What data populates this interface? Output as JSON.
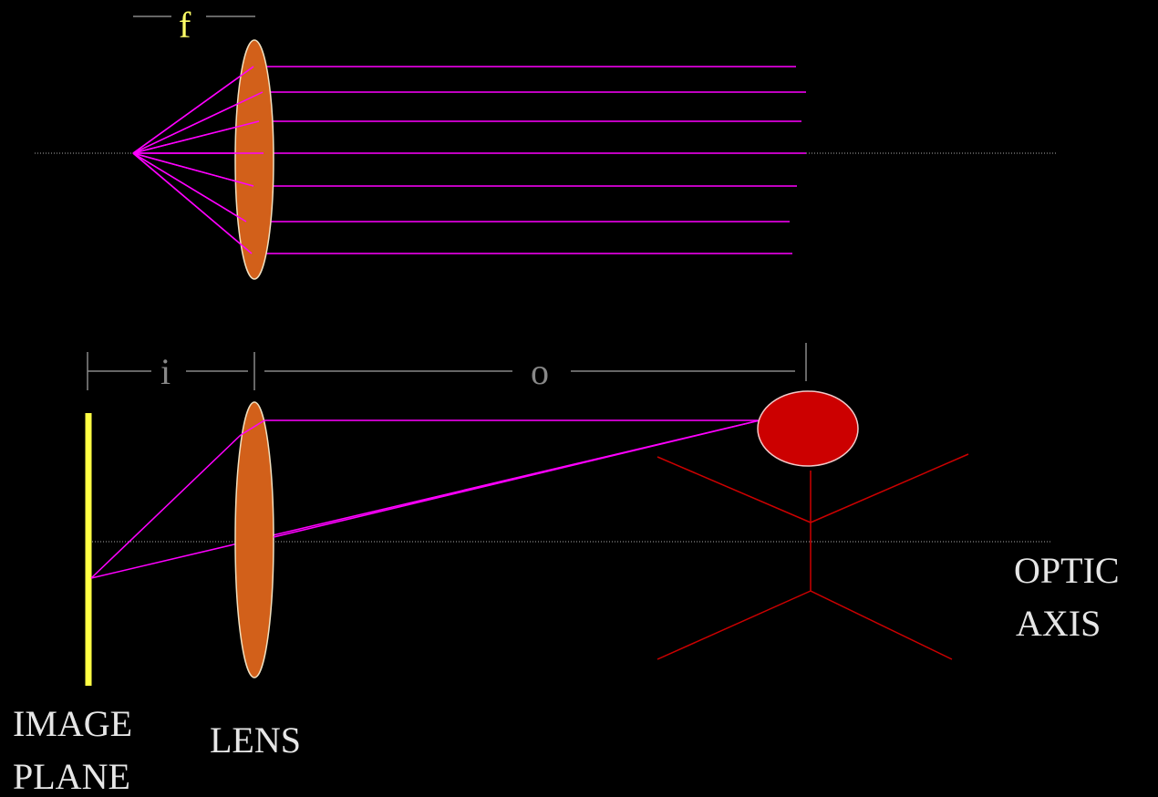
{
  "labels": {
    "focal_length": "f",
    "image_distance": "i",
    "object_distance": "o",
    "optic_axis_line1": "OPTIC",
    "optic_axis_line2": "AXIS",
    "lens": "LENS",
    "image_plane_line1": "IMAGE",
    "image_plane_line2": "PLANE"
  },
  "colors": {
    "background": "#000000",
    "lens_fill": "#d2601a",
    "lens_stroke": "#f0e0c0",
    "ray": "#ff00ff",
    "image_plane": "#ffff44",
    "object": "#cc0000",
    "axis": "#aaaaaa",
    "dimension": "#888888",
    "focal_label": "#ffff66",
    "text": "#e6e6e6"
  }
}
